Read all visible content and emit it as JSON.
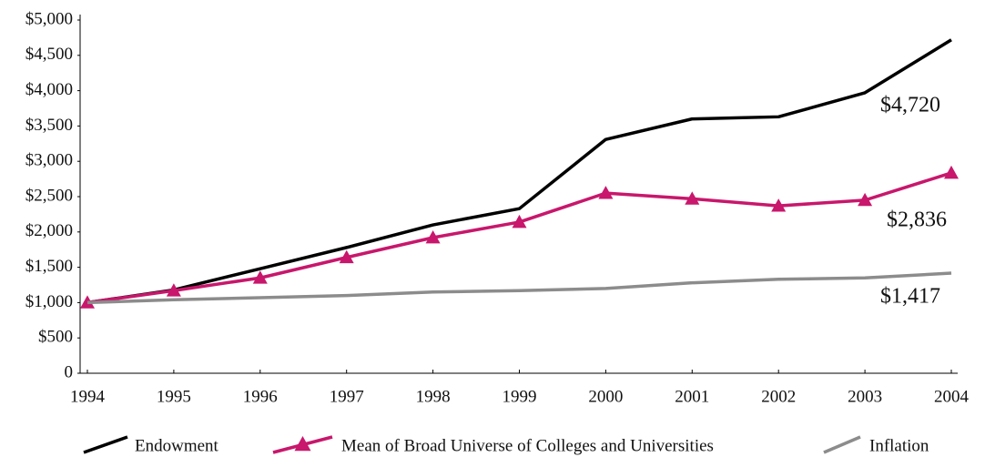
{
  "chart_data": {
    "type": "line",
    "x": [
      1994,
      1995,
      1996,
      1997,
      1998,
      1999,
      2000,
      2001,
      2002,
      2003,
      2004
    ],
    "xlim": [
      1994,
      2004
    ],
    "xticks": [
      1994,
      1995,
      1996,
      1997,
      1998,
      1999,
      2000,
      2001,
      2002,
      2003,
      2004
    ],
    "ylim": [
      0,
      5000
    ],
    "yticks": [
      0,
      {
        "value": 500,
        "label": "$500"
      },
      {
        "value": 1000,
        "label": "$1,000"
      },
      {
        "value": 1500,
        "label": "$1,500"
      },
      {
        "value": 2000,
        "label": "$2,000"
      },
      {
        "value": 2500,
        "label": "$2,500"
      },
      {
        "value": 3000,
        "label": "$3,000"
      },
      {
        "value": 3500,
        "label": "$3,500"
      },
      {
        "value": 4000,
        "label": "$4,000"
      },
      {
        "value": 4500,
        "label": "$4,500"
      },
      {
        "value": 5000,
        "label": "$5,000"
      }
    ],
    "series": [
      {
        "name": "Endowment",
        "color": "#000000",
        "marker": "none",
        "values": [
          1000,
          1180,
          1480,
          1780,
          2100,
          2330,
          3310,
          3600,
          3630,
          3970,
          4720
        ],
        "value_labels": [
          null,
          null,
          null,
          null,
          null,
          null,
          null,
          null,
          null,
          null,
          "$4,720"
        ]
      },
      {
        "name": "Mean of Broad Universe of Colleges and Universities",
        "color": "#c8176c",
        "marker": "triangle",
        "values": [
          1000,
          1170,
          1350,
          1640,
          1920,
          2140,
          2550,
          2470,
          2370,
          2450,
          2836
        ],
        "value_labels": [
          null,
          null,
          null,
          null,
          null,
          null,
          null,
          null,
          null,
          null,
          "$2,836"
        ]
      },
      {
        "name": "Inflation",
        "color": "#8c8c8c",
        "marker": "none",
        "values": [
          1000,
          1040,
          1070,
          1100,
          1150,
          1170,
          1200,
          1280,
          1330,
          1350,
          1417
        ],
        "value_labels": [
          null,
          null,
          null,
          null,
          null,
          null,
          null,
          null,
          null,
          null,
          "$1,417"
        ]
      }
    ]
  }
}
